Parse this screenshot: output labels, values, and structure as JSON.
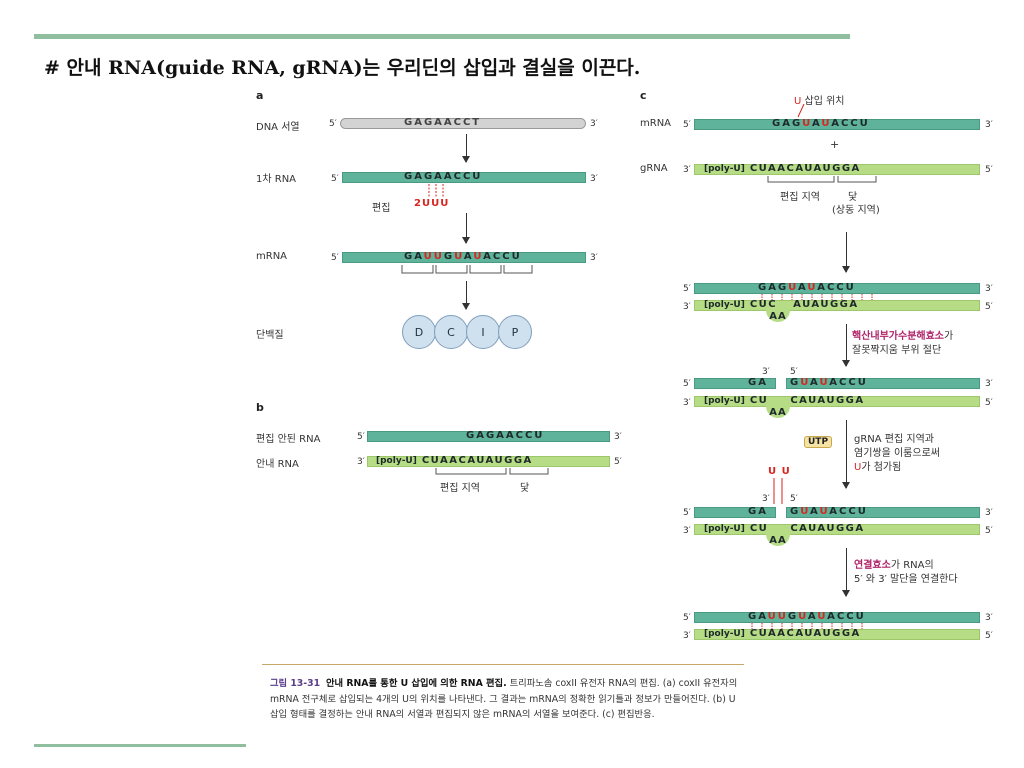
{
  "title": "# 안내 RNA(guide RNA, gRNA)는 우리딘의 삽입과 결실을 이끈다.",
  "panels": {
    "a": {
      "letter": "a",
      "dna_label": "DNA 서열",
      "dna_seq": "GAGAACCT",
      "rna1_label": "1차 RNA",
      "rna1_seq": "GAGAACCU",
      "edit_label": "편집",
      "edit_insert": "2UUU",
      "mrna_label": "mRNA",
      "mrna_seq": [
        "GA",
        "UU",
        "G",
        "U",
        "A",
        "U",
        "ACCU"
      ],
      "protein_label": "단백질",
      "protein": [
        "D",
        "C",
        "I",
        "P"
      ]
    },
    "b": {
      "letter": "b",
      "unedited_label": "편집 안된 RNA",
      "unedited_seq": "GAGAACCU",
      "guide_label": "안내 RNA",
      "polyu": "[poly-U]",
      "guide_seq": "CUAACAUAUGGA",
      "edit_region": "편집 지역",
      "anchor": "닻"
    },
    "c": {
      "letter": "c",
      "insert_site": "U 삽입 위치",
      "insert_site_u": "U",
      "insert_site_rest": " 삽입 위치",
      "mrna_label": "mRNA",
      "grna_label": "gRNA",
      "plus": "+",
      "mrna_seq_a": "GAG",
      "mrna_seq_b": "U",
      "mrna_seq_c": "A",
      "mrna_seq_d": "U",
      "mrna_seq_e": "ACCU",
      "polyu": "[poly-U]",
      "grna_seq": "CUAACAUAUGGA",
      "edit_region": "편집 지역",
      "anchor": "닻",
      "anchor_sub": "(상동 지역)",
      "loop_aa": "AA",
      "step1_mag": "핵산내부가수분해효소",
      "step1_rest1": "가",
      "step1_rest2": "잘못짝지움 부위 절단",
      "step2_utp": "UTP",
      "step2_line1": "gRNA 편집 지역과",
      "step2_line2": "염기쌍을 이룸으로써",
      "step2_line3": "가 첨가됨",
      "step2_u": "U",
      "uu": "U U",
      "step3_mag": "연결효소",
      "step3_rest1": "가 RNA의",
      "step3_rest2": "5′ 와 3′ 말단을 연결한다",
      "cut_ga": "GA",
      "cut_right": "GUAUACCU",
      "cut_cu": "CU",
      "cut_g_rest": "CAUAUGGA",
      "final_mrna": "GAUUGUAUACCU",
      "final_grna": "CUAACAUAUGGA",
      "s1_mrna": "GAGUAUACCU",
      "s1_grna_a": "CUC",
      "s1_grna_b": "AUAUGGA"
    }
  },
  "ends": {
    "five": "5′",
    "three": "3′"
  },
  "caption": {
    "fig": "그림 13-31",
    "bold": "안내 RNA를 통한 U 삽입에 의한 RNA 편집.",
    "text": "트리파노솜 coxII 유전자 RNA의 편집. (a) coxII 유전자의 mRNA 전구체로 삽입되는 4개의 U의 위치를 나타낸다. 그 결과는 mRNA의 정확한 읽기틀과 정보가 만들어진다. (b) U 삽입 형태를 결정하는 안내 RNA의 서열과 편집되지 않은 mRNA의 서열을 보여준다. (c) 편집반응."
  }
}
